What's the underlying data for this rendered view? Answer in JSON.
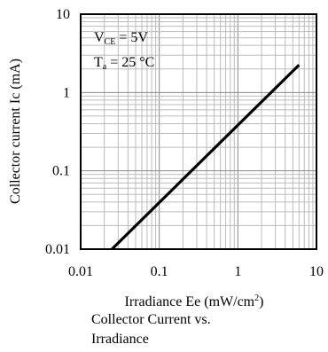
{
  "chart_data": {
    "type": "line",
    "xscale": "log",
    "yscale": "log",
    "xlim": [
      0.01,
      10
    ],
    "ylim": [
      0.01,
      10
    ],
    "x_tick_labels": [
      "0.01",
      "0.1",
      "1",
      "10"
    ],
    "y_tick_labels": [
      "0.01",
      "0.1",
      "1",
      "10"
    ],
    "xlabel": "Irradiance Ee (mW/cm",
    "xlabel_superscript": "2",
    "xlabel_close": ")",
    "ylabel": "Collector current Ic (mA)",
    "grid": true,
    "annotations": {
      "vce_main": "V",
      "vce_sub": "CE",
      "vce_value": " = 5V",
      "ta_main": "T",
      "ta_sub": "a",
      "ta_value": " = 25 °C"
    },
    "series": [
      {
        "x": [
          0.025,
          6.0
        ],
        "y": [
          0.01,
          2.25
        ],
        "color": "#000000"
      }
    ]
  },
  "caption": "Collector  Current vs.\nIrradiance"
}
